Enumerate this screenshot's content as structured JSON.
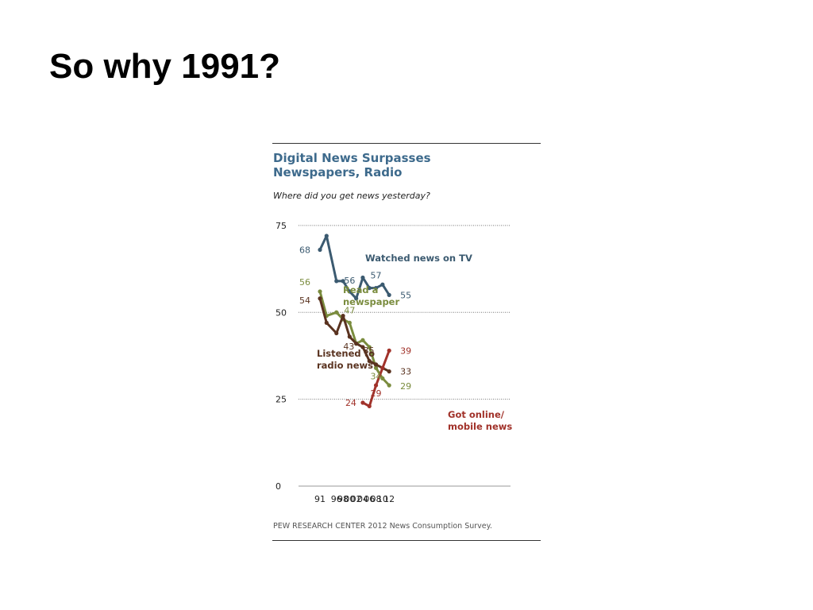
{
  "slide": {
    "title": "So why 1991?"
  },
  "chart_data": {
    "type": "line",
    "title": "Digital News Surpasses Newspapers, Radio",
    "subtitle": "Where did you get news yesterday?",
    "source": "PEW RESEARCH  CENTER 2012 News Consumption Survey.",
    "ylim": [
      0,
      75
    ],
    "yticks": [
      0,
      25,
      50,
      75
    ],
    "grid": true,
    "x": [
      1991,
      1993,
      1996,
      1998,
      2000,
      2002,
      2004,
      2006,
      2008,
      2010,
      2012
    ],
    "xtick_values": [
      1991,
      1996,
      1998,
      2000,
      2002,
      2004,
      2006,
      2008,
      2010,
      2012
    ],
    "xtick_labels": [
      "91",
      "96",
      "98",
      "00",
      "02",
      "04",
      "06",
      "08",
      "10",
      "12"
    ],
    "series": [
      {
        "name": "Watched news on TV",
        "color": "#3b5a70",
        "points": [
          [
            1991,
            68
          ],
          [
            1993,
            72
          ],
          [
            1996,
            59
          ],
          [
            1998,
            59
          ],
          [
            2000,
            56
          ],
          [
            2002,
            54
          ],
          [
            2004,
            60
          ],
          [
            2006,
            57
          ],
          [
            2008,
            57
          ],
          [
            2010,
            58
          ],
          [
            2012,
            55
          ]
        ],
        "data_labels": [
          {
            "x": 1991,
            "y": 68,
            "text": "68"
          },
          {
            "x": 2000,
            "y": 56,
            "text": "56"
          },
          {
            "x": 2008,
            "y": 57,
            "text": "57"
          },
          {
            "x": 2012,
            "y": 55,
            "text": "55"
          }
        ]
      },
      {
        "name": "Read a newspaper",
        "color": "#7a8c3e",
        "points": [
          [
            1991,
            56
          ],
          [
            1993,
            49
          ],
          [
            1996,
            50
          ],
          [
            1998,
            48
          ],
          [
            2000,
            47
          ],
          [
            2002,
            41
          ],
          [
            2004,
            42
          ],
          [
            2006,
            40
          ],
          [
            2008,
            34
          ],
          [
            2010,
            31
          ],
          [
            2012,
            29
          ]
        ],
        "data_labels": [
          {
            "x": 1991,
            "y": 56,
            "text": "56"
          },
          {
            "x": 2000,
            "y": 47,
            "text": "47"
          },
          {
            "x": 2008,
            "y": 34,
            "text": "34"
          },
          {
            "x": 2012,
            "y": 29,
            "text": "29"
          }
        ]
      },
      {
        "name": "Listened to radio news",
        "color": "#5a3320",
        "points": [
          [
            1991,
            54
          ],
          [
            1993,
            47
          ],
          [
            1996,
            44
          ],
          [
            1998,
            49
          ],
          [
            2000,
            43
          ],
          [
            2002,
            41
          ],
          [
            2004,
            40
          ],
          [
            2006,
            36
          ],
          [
            2008,
            35
          ],
          [
            2010,
            34
          ],
          [
            2012,
            33
          ]
        ],
        "data_labels": [
          {
            "x": 1991,
            "y": 54,
            "text": "54"
          },
          {
            "x": 2000,
            "y": 43,
            "text": "43"
          },
          {
            "x": 2008,
            "y": 35,
            "text": "35"
          },
          {
            "x": 2012,
            "y": 33,
            "text": "33"
          }
        ]
      },
      {
        "name": "Got online/ mobile news",
        "color": "#a1322a",
        "points": [
          [
            2004,
            24
          ],
          [
            2006,
            23
          ],
          [
            2008,
            29
          ],
          [
            2010,
            34
          ],
          [
            2012,
            39
          ]
        ],
        "data_labels": [
          {
            "x": 2004,
            "y": 24,
            "text": "24"
          },
          {
            "x": 2008,
            "y": 29,
            "text": "29"
          },
          {
            "x": 2012,
            "y": 39,
            "text": "39"
          }
        ]
      }
    ],
    "annotations": [
      {
        "series": 0,
        "lines": [
          "Watched news on TV"
        ]
      },
      {
        "series": 1,
        "lines": [
          "Read a",
          "newspaper"
        ]
      },
      {
        "series": 2,
        "lines": [
          "Listened to",
          "radio news"
        ]
      },
      {
        "series": 3,
        "lines": [
          "Got online/",
          "mobile news"
        ]
      }
    ]
  }
}
